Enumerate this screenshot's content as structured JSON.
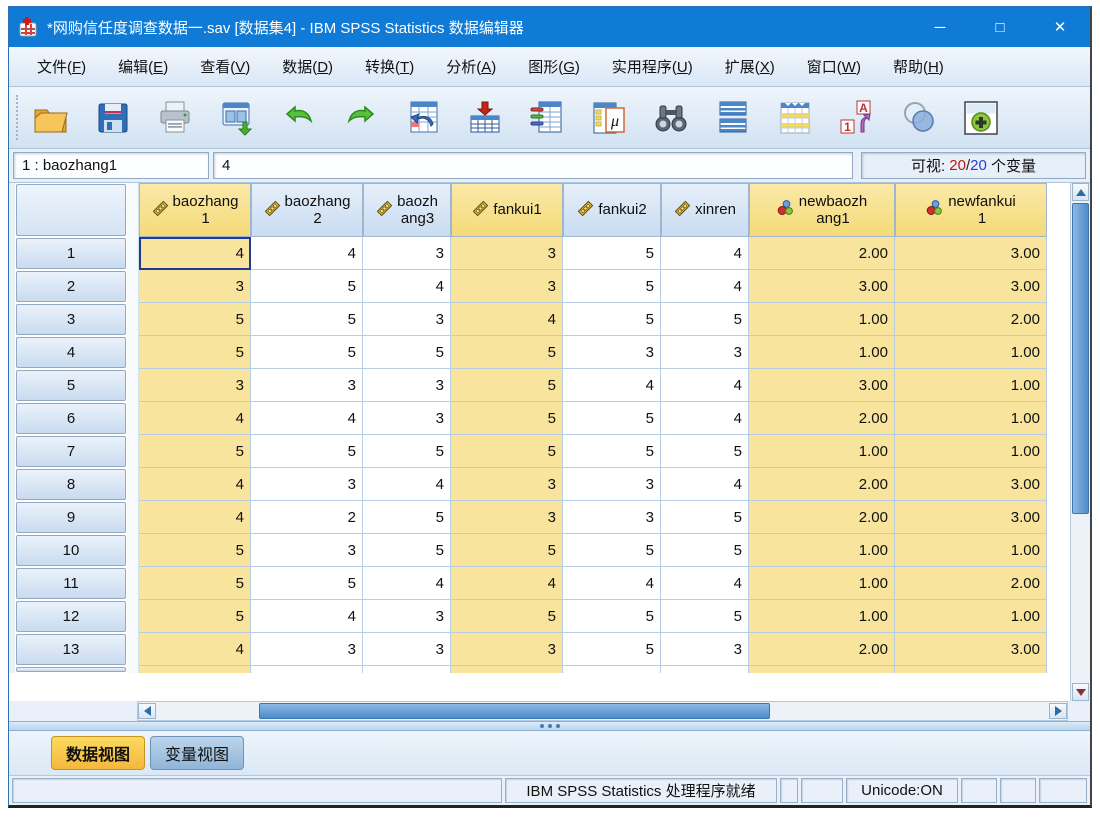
{
  "window": {
    "title": "*网购信任度调查数据一.sav [数据集4] - IBM SPSS Statistics 数据编辑器",
    "controls": {
      "minimize": "─",
      "maximize": "□",
      "close": "✕"
    }
  },
  "menu": {
    "items": [
      "文件(F)",
      "编辑(E)",
      "查看(V)",
      "数据(D)",
      "转换(T)",
      "分析(A)",
      "图形(G)",
      "实用程序(U)",
      "扩展(X)",
      "窗口(W)",
      "帮助(H)"
    ]
  },
  "toolbar": {
    "icons": [
      "open-data-icon",
      "save-icon",
      "print-icon",
      "recall-dialogs-icon",
      "undo-icon",
      "redo-icon",
      "goto-case-icon",
      "goto-variable-icon",
      "variables-icon",
      "descriptives-icon",
      "find-icon",
      "split-file-icon",
      "select-cases-icon",
      "value-labels-icon",
      "variable-sets-icon",
      "custom-dialogs-icon"
    ]
  },
  "cellref": {
    "cell_label": "1 : baozhang1",
    "cell_value": "4",
    "visible_prefix": "可视:",
    "visible_count_a": "20",
    "visible_count_sep": "/",
    "visible_count_b": "20",
    "visible_suffix": "个变量"
  },
  "grid": {
    "columns": [
      {
        "id": "baozhang1",
        "line1": "baozhang",
        "line2": "1",
        "measure": "scale",
        "highlight": true
      },
      {
        "id": "baozhang2",
        "line1": "baozhang",
        "line2": "2",
        "measure": "scale",
        "highlight": false
      },
      {
        "id": "baozhang3",
        "line1": "baozh",
        "line2": "ang3",
        "measure": "scale",
        "highlight": false
      },
      {
        "id": "fankui1",
        "line1": "fankui1",
        "line2": "",
        "measure": "scale",
        "highlight": true
      },
      {
        "id": "fankui2",
        "line1": "fankui2",
        "line2": "",
        "measure": "scale",
        "highlight": false
      },
      {
        "id": "xinren",
        "line1": "xinren",
        "line2": "",
        "measure": "scale",
        "highlight": false
      },
      {
        "id": "newbaozhang1",
        "line1": "newbaozh",
        "line2": "ang1",
        "measure": "nominal",
        "highlight": true
      },
      {
        "id": "newfankui1",
        "line1": "newfankui",
        "line2": "1",
        "measure": "nominal",
        "highlight": true
      }
    ],
    "rows": [
      {
        "num": "1",
        "values": [
          "4",
          "4",
          "3",
          "3",
          "5",
          "4",
          "2.00",
          "3.00"
        ]
      },
      {
        "num": "2",
        "values": [
          "3",
          "5",
          "4",
          "3",
          "5",
          "4",
          "3.00",
          "3.00"
        ]
      },
      {
        "num": "3",
        "values": [
          "5",
          "5",
          "3",
          "4",
          "5",
          "5",
          "1.00",
          "2.00"
        ]
      },
      {
        "num": "4",
        "values": [
          "5",
          "5",
          "5",
          "5",
          "3",
          "3",
          "1.00",
          "1.00"
        ]
      },
      {
        "num": "5",
        "values": [
          "3",
          "3",
          "3",
          "5",
          "4",
          "4",
          "3.00",
          "1.00"
        ]
      },
      {
        "num": "6",
        "values": [
          "4",
          "4",
          "3",
          "5",
          "5",
          "4",
          "2.00",
          "1.00"
        ]
      },
      {
        "num": "7",
        "values": [
          "5",
          "5",
          "5",
          "5",
          "5",
          "5",
          "1.00",
          "1.00"
        ]
      },
      {
        "num": "8",
        "values": [
          "4",
          "3",
          "4",
          "3",
          "3",
          "4",
          "2.00",
          "3.00"
        ]
      },
      {
        "num": "9",
        "values": [
          "4",
          "2",
          "5",
          "3",
          "3",
          "5",
          "2.00",
          "3.00"
        ]
      },
      {
        "num": "10",
        "values": [
          "5",
          "3",
          "5",
          "5",
          "5",
          "5",
          "1.00",
          "1.00"
        ]
      },
      {
        "num": "11",
        "values": [
          "5",
          "5",
          "4",
          "4",
          "4",
          "4",
          "1.00",
          "2.00"
        ]
      },
      {
        "num": "12",
        "values": [
          "5",
          "4",
          "3",
          "5",
          "5",
          "5",
          "1.00",
          "1.00"
        ]
      },
      {
        "num": "13",
        "values": [
          "4",
          "3",
          "3",
          "3",
          "5",
          "3",
          "2.00",
          "3.00"
        ]
      }
    ],
    "selected_cell": {
      "row_index": 0,
      "col_index": 0
    }
  },
  "tabs": [
    {
      "label": "数据视图",
      "active": true
    },
    {
      "label": "变量视图",
      "active": false
    }
  ],
  "statusbar": {
    "message": "",
    "processor": "IBM SPSS Statistics 处理程序就绪",
    "unicode": "Unicode:ON"
  }
}
